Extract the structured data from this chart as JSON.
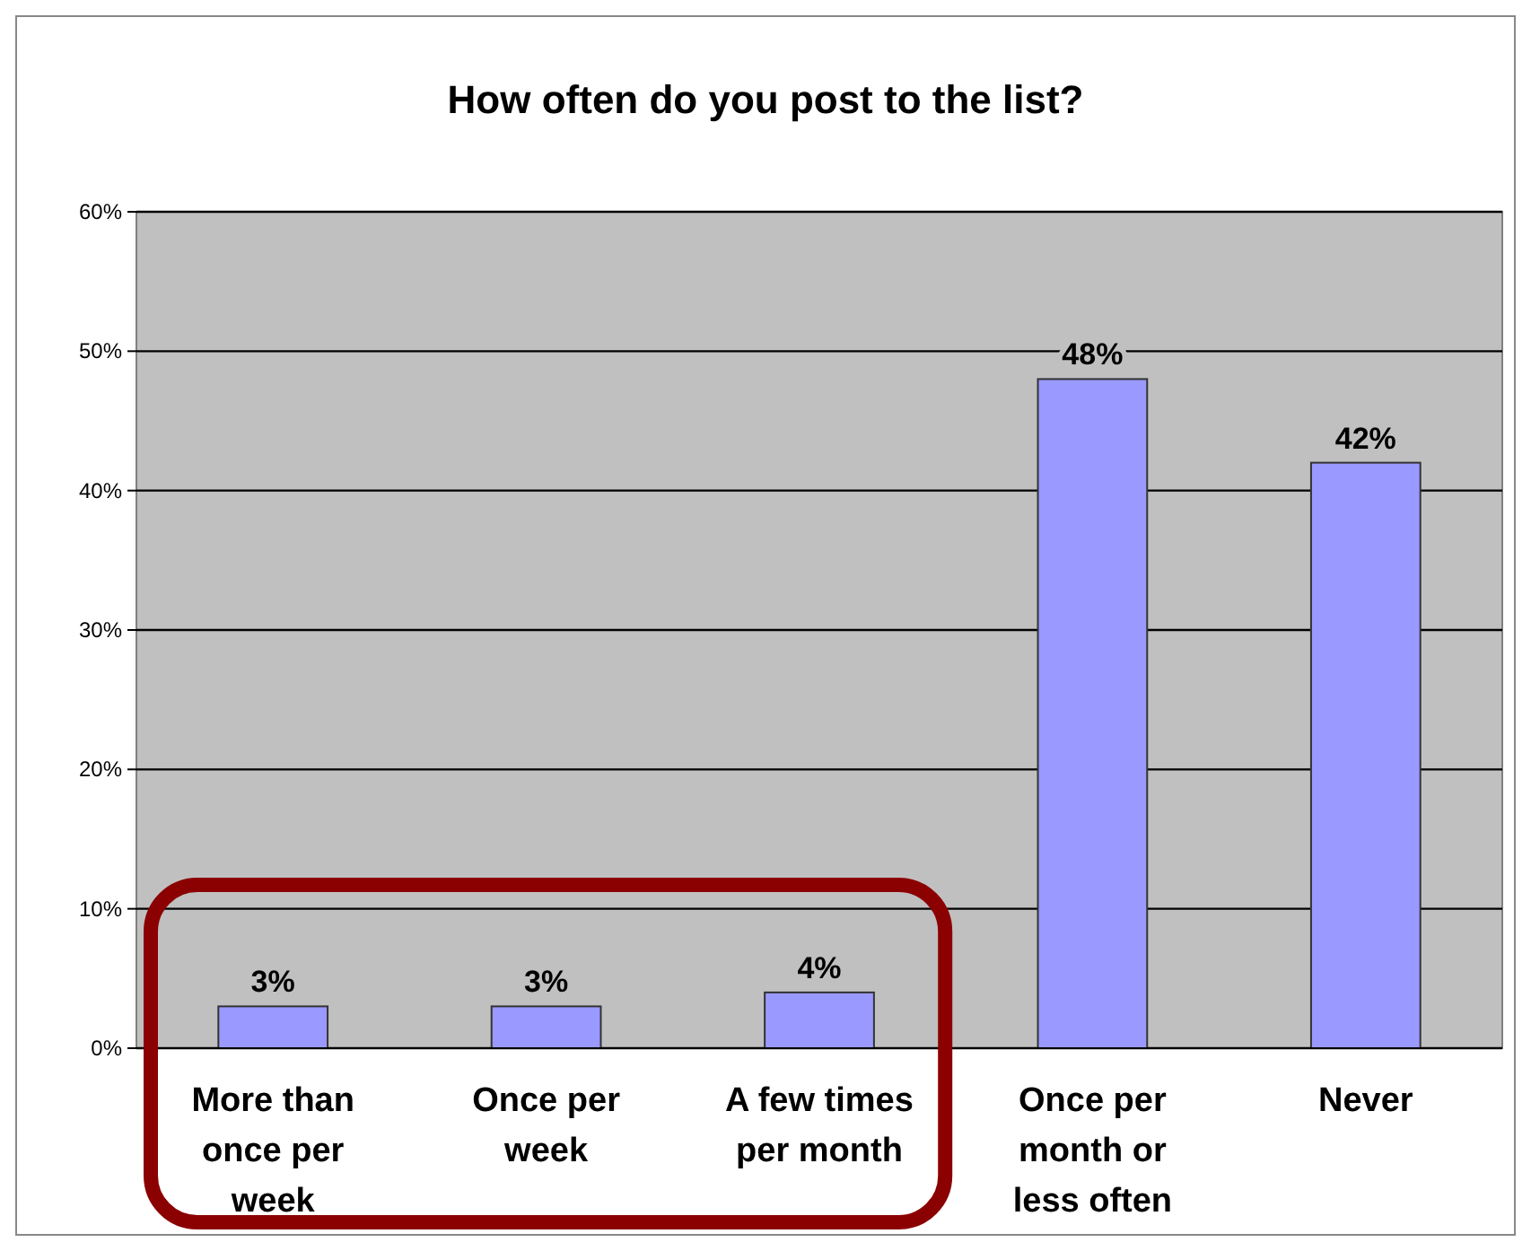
{
  "chart_data": {
    "type": "bar",
    "title": "How often do you post to the list?",
    "categories": [
      "More than once per week",
      "Once per week",
      "A few times per month",
      "Once per month or less often",
      "Never"
    ],
    "values": [
      3,
      3,
      4,
      48,
      42
    ],
    "color": "#9999ff",
    "value_labels": [
      "3%",
      "3%",
      "4%",
      "48%",
      "42%"
    ],
    "ylim": [
      0,
      60
    ],
    "yticks": [
      {
        "value": 0,
        "label": "0%"
      },
      {
        "value": 10,
        "label": "10%"
      },
      {
        "value": 20,
        "label": "20%"
      },
      {
        "value": 30,
        "label": "30%"
      },
      {
        "value": 40,
        "label": "40%"
      },
      {
        "value": 50,
        "label": "50%"
      },
      {
        "value": 60,
        "label": "60%"
      }
    ],
    "grid": "y"
  }
}
